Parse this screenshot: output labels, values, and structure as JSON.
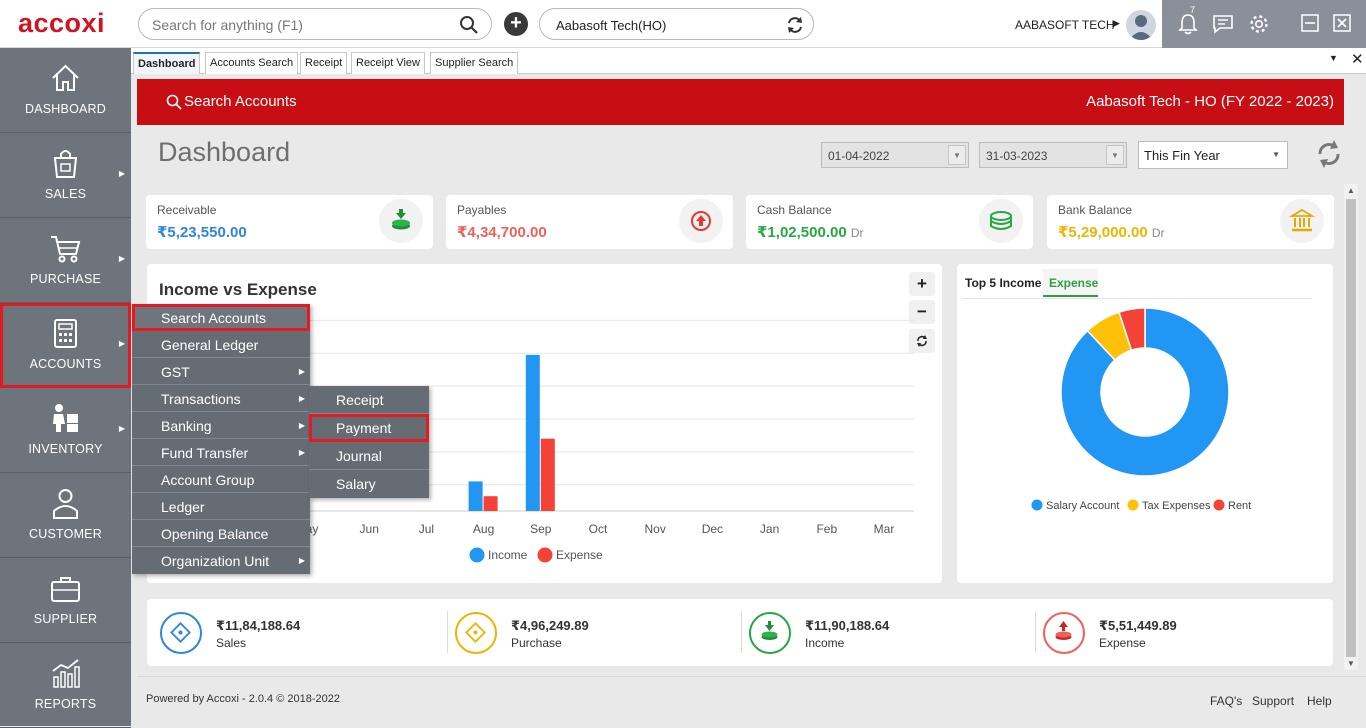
{
  "app": {
    "logo": "accoxi"
  },
  "search": {
    "placeholder": "Search for anything (F1)"
  },
  "company": {
    "selector": "Aabasoft Tech(HO)",
    "user_name": "AABASOFT TECH",
    "notifications": "7"
  },
  "sidebar": {
    "items": [
      {
        "label": "DASHBOARD"
      },
      {
        "label": "SALES"
      },
      {
        "label": "PURCHASE"
      },
      {
        "label": "ACCOUNTS"
      },
      {
        "label": "INVENTORY"
      },
      {
        "label": "CUSTOMER"
      },
      {
        "label": "SUPPLIER"
      },
      {
        "label": "REPORTS"
      }
    ]
  },
  "tabs": [
    {
      "label": "Dashboard",
      "active": true
    },
    {
      "label": "Accounts Search"
    },
    {
      "label": "Receipt"
    },
    {
      "label": "Receipt View"
    },
    {
      "label": "Supplier Search"
    }
  ],
  "header": {
    "search_accounts": "Search Accounts",
    "company_fy": "Aabasoft Tech - HO (FY 2022 - 2023)"
  },
  "dashboard": {
    "title": "Dashboard",
    "from_date": "01-04-2022",
    "to_date": "31-03-2023",
    "period": "This Fin Year"
  },
  "cards": [
    {
      "label": "Receivable",
      "value": "₹5,23,550.00",
      "suffix": "",
      "color": "#2e86de"
    },
    {
      "label": "Payables",
      "value": "₹4,34,700.00",
      "suffix": "",
      "color": "#f0605a"
    },
    {
      "label": "Cash Balance",
      "value": "₹1,02,500.00",
      "suffix": "Dr",
      "color": "#28a745"
    },
    {
      "label": "Bank Balance",
      "value": "₹5,29,000.00",
      "suffix": "Dr",
      "color": "#f0b400"
    }
  ],
  "chart_data": [
    {
      "type": "bar",
      "title": "Income vs Expense",
      "categories": [
        "May",
        "Jun",
        "Jul",
        "Aug",
        "Sep",
        "Oct",
        "Nov",
        "Dec",
        "Jan",
        "Feb",
        "Mar"
      ],
      "visible_labels": [
        "ay",
        "Jun",
        "Jul",
        "Aug",
        "Sep",
        "Oct",
        "Nov",
        "Dec",
        "Jan",
        "Feb",
        "Mar"
      ],
      "series": [
        {
          "name": "Income",
          "color": "#2196f3",
          "values": [
            0,
            0,
            0,
            1.8,
            9.5,
            0,
            0,
            0,
            0,
            0,
            0
          ]
        },
        {
          "name": "Expense",
          "color": "#f44336",
          "values": [
            0,
            0,
            0,
            0.9,
            4.4,
            0,
            0,
            0,
            0,
            0,
            0
          ]
        }
      ],
      "ylim": [
        0,
        11.5
      ],
      "grid": true,
      "legend": "bottom"
    },
    {
      "type": "pie",
      "tabs": [
        "Top 5 Income",
        "Expense"
      ],
      "active_tab": "Expense",
      "labels": [
        "Salary Account",
        "Tax Expenses",
        "Rent"
      ],
      "values": [
        88,
        7,
        5
      ],
      "colors": [
        "#2196f3",
        "#ffc107",
        "#f44336"
      ],
      "legend": "bottom"
    }
  ],
  "totals": [
    {
      "value": "₹11,84,188.64",
      "label": "Sales",
      "color": "#2e86de"
    },
    {
      "value": "₹4,96,249.89",
      "label": "Purchase",
      "color": "#f0b400"
    },
    {
      "value": "₹11,90,188.64",
      "label": "Income",
      "color": "#28a745"
    },
    {
      "value": "₹5,51,449.89",
      "label": "Expense",
      "color": "#f0605a"
    }
  ],
  "footer": {
    "powered": "Powered by Accoxi - 2.0.4 © 2018-2022",
    "faq": "FAQ's",
    "support": "Support",
    "help": "Help"
  },
  "accounts_menu": [
    {
      "label": "Search Accounts",
      "highlight": true
    },
    {
      "label": "General Ledger"
    },
    {
      "label": "GST",
      "sub": true
    },
    {
      "label": "Transactions",
      "sub": true
    },
    {
      "label": "Banking",
      "sub": true
    },
    {
      "label": "Fund Transfer",
      "sub": true
    },
    {
      "label": "Account Group"
    },
    {
      "label": "Ledger"
    },
    {
      "label": "Opening Balance"
    },
    {
      "label": "Organization Unit",
      "sub": true
    }
  ],
  "transactions_menu": [
    {
      "label": "Receipt"
    },
    {
      "label": "Payment",
      "highlight": true
    },
    {
      "label": "Journal"
    },
    {
      "label": "Salary"
    }
  ]
}
